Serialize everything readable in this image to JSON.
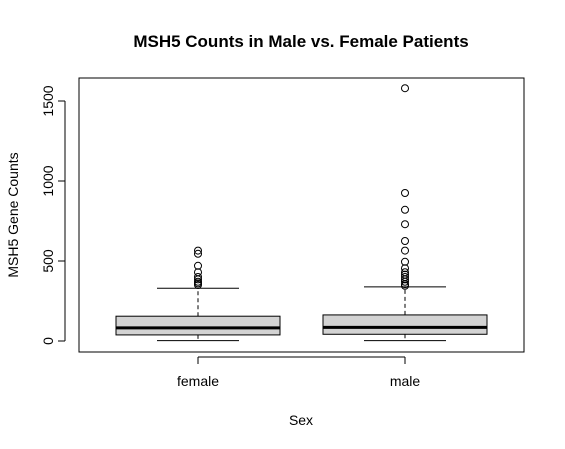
{
  "chart_data": {
    "type": "boxplot",
    "title": "MSH5 Counts in Male vs. Female Patients",
    "xlabel": "Sex",
    "ylabel": "MSH5 Gene Counts",
    "ylim": [
      -60,
      1640
    ],
    "yticks": [
      0,
      500,
      1000,
      1500
    ],
    "categories": [
      "female",
      "male"
    ],
    "box_fill": "#d3d3d3",
    "boxes": [
      {
        "name": "female",
        "whisker_low": 2,
        "q1": 38,
        "median": 82,
        "q3": 155,
        "whisker_high": 330,
        "outliers": [
          565,
          545,
          470,
          430,
          400,
          385,
          370,
          360,
          350
        ]
      },
      {
        "name": "male",
        "whisker_low": 2,
        "q1": 42,
        "median": 85,
        "q3": 163,
        "whisker_high": 338,
        "outliers": [
          1580,
          925,
          820,
          730,
          625,
          565,
          495,
          455,
          430,
          415,
          400,
          385,
          370,
          355,
          345
        ]
      }
    ]
  }
}
